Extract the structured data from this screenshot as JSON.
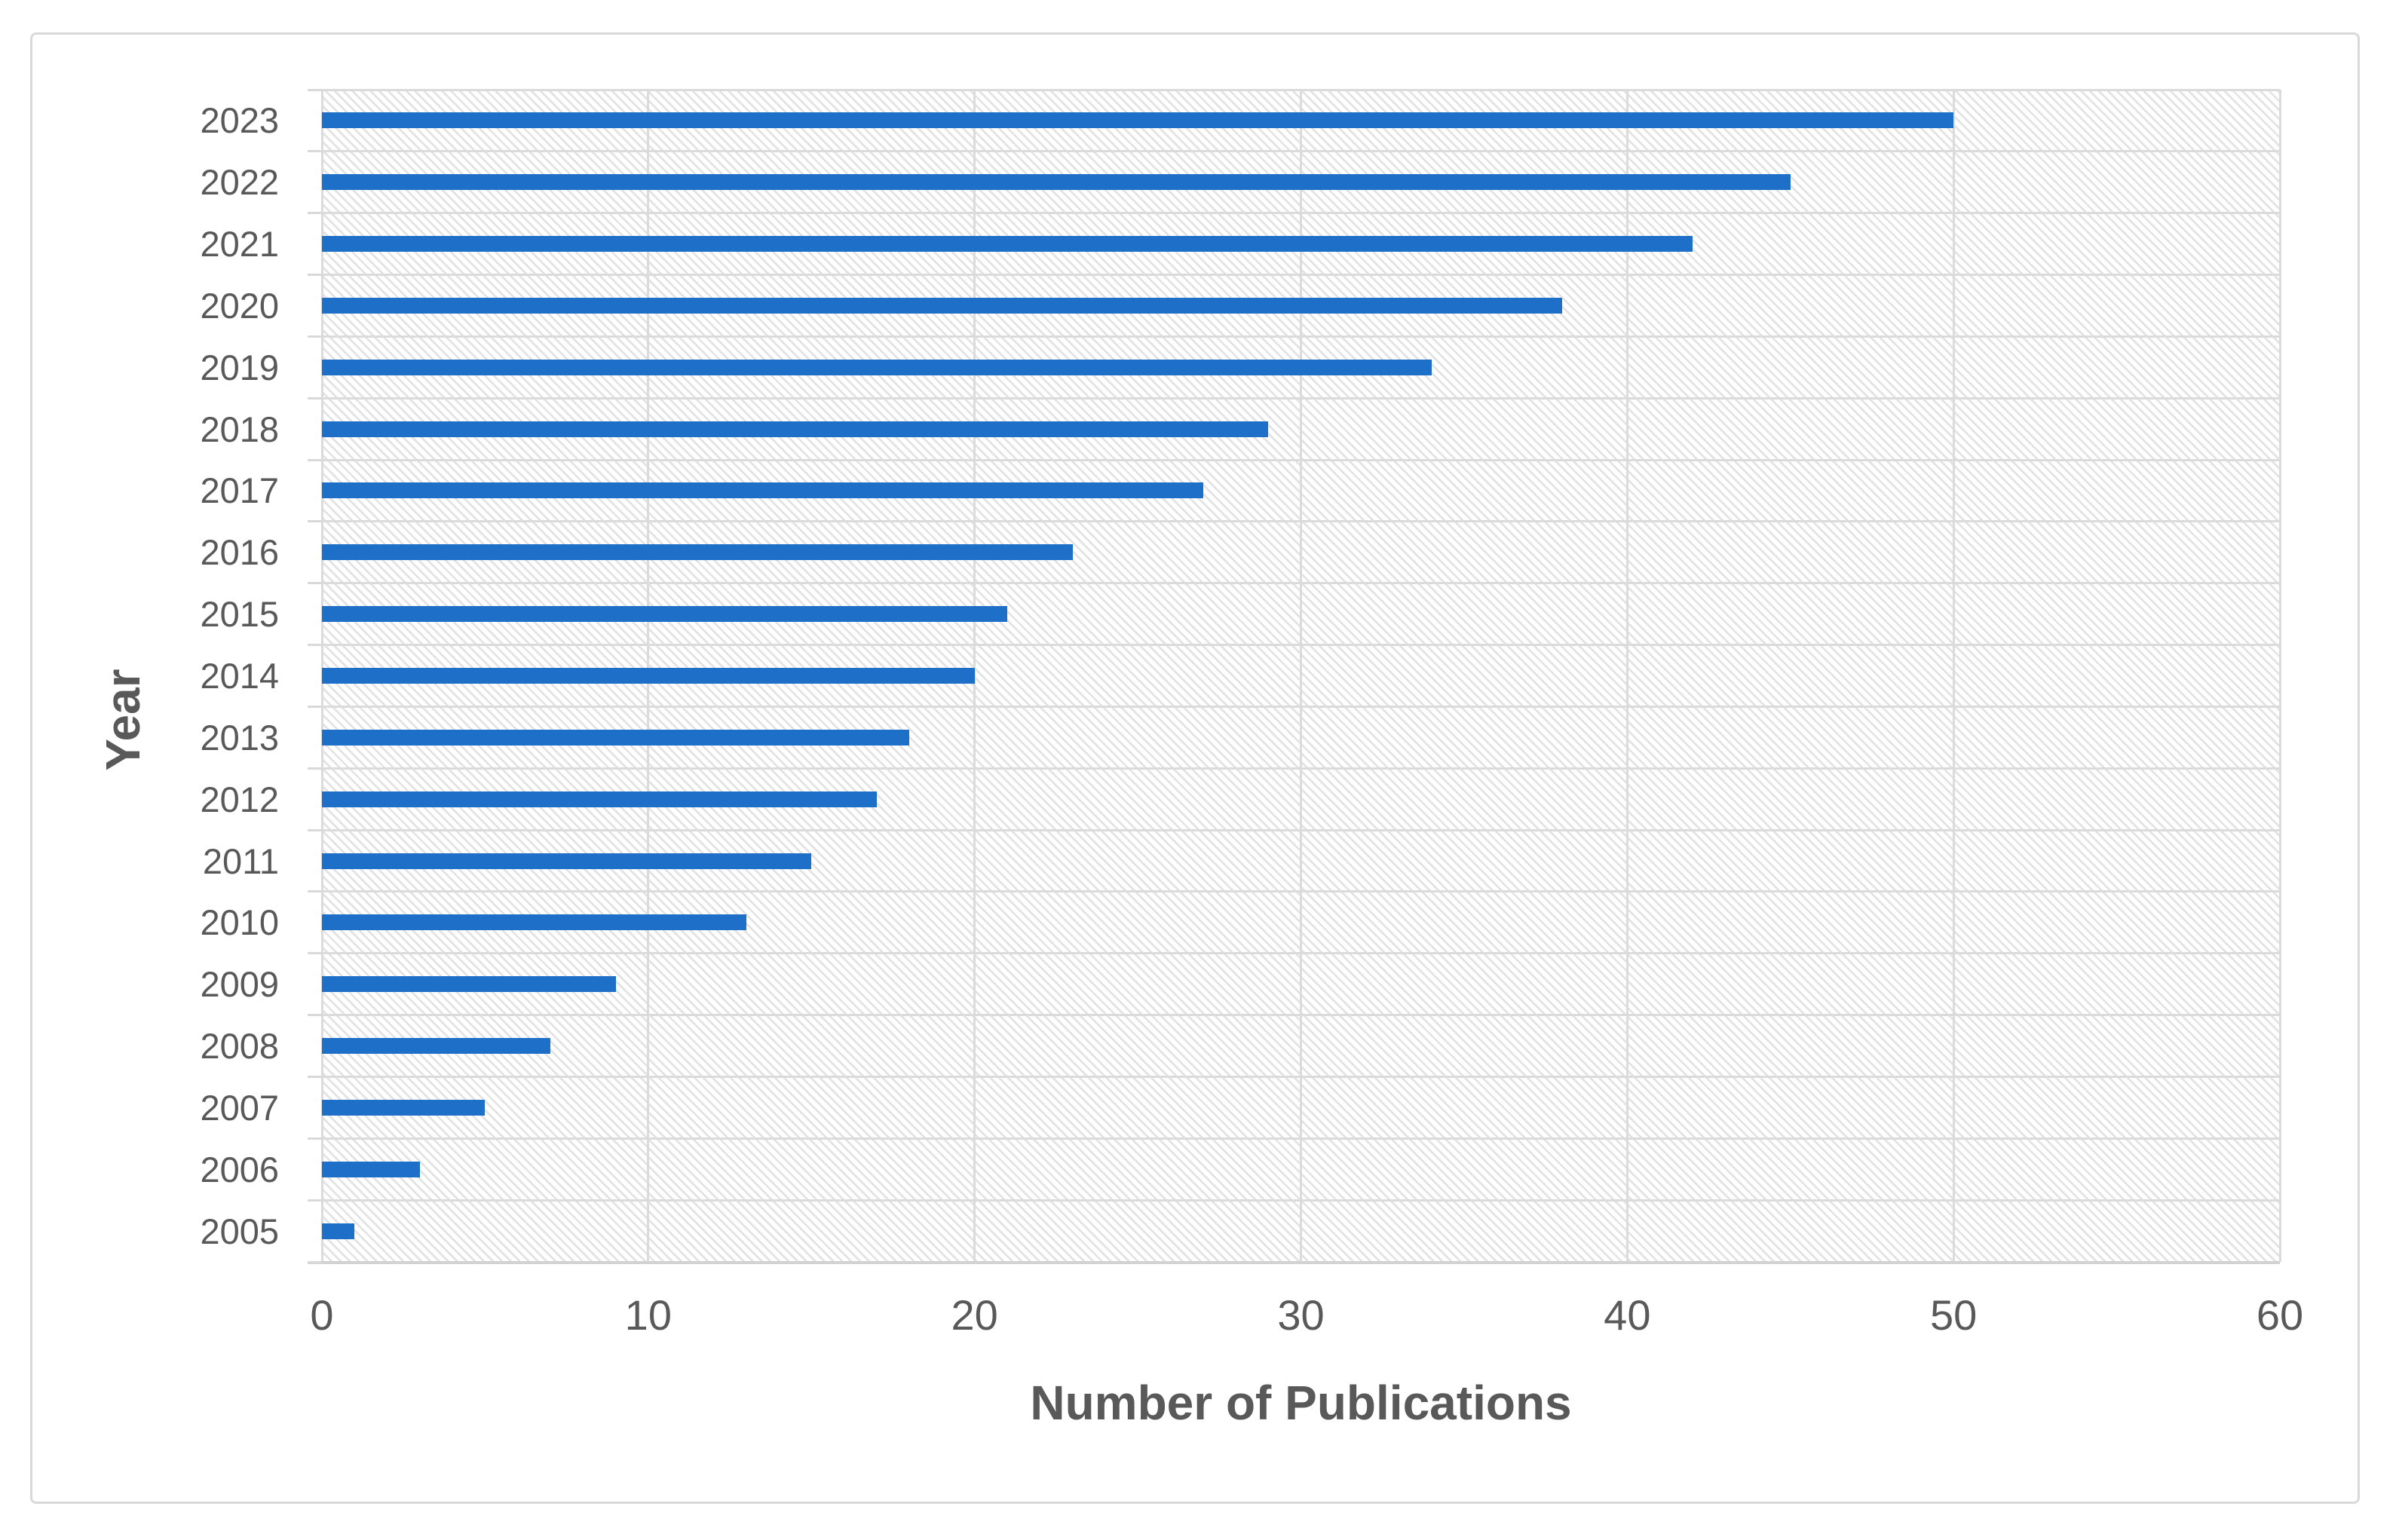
{
  "chart_data": {
    "type": "bar",
    "orientation": "horizontal",
    "title": "",
    "xlabel": "Number of Publications",
    "ylabel": "Year",
    "categories": [
      "2023",
      "2022",
      "2021",
      "2020",
      "2019",
      "2018",
      "2017",
      "2016",
      "2015",
      "2014",
      "2013",
      "2012",
      "2011",
      "2010",
      "2009",
      "2008",
      "2007",
      "2006",
      "2005"
    ],
    "values": [
      50,
      45,
      42,
      38,
      34,
      29,
      27,
      23,
      21,
      20,
      18,
      17,
      15,
      13,
      9,
      7,
      5,
      3,
      1
    ],
    "xlim": [
      0,
      60
    ],
    "xticks": [
      0,
      10,
      20,
      30,
      40,
      50,
      60
    ],
    "grid": true,
    "legend_visible": false,
    "bar_color": "#1E6FC8",
    "grid_color": "#DBDBDB",
    "axis_text_color": "#595959",
    "frame_border_color": "#D9D9D9",
    "plot_fill_pattern": "light-downward-diagonal-hatch"
  }
}
